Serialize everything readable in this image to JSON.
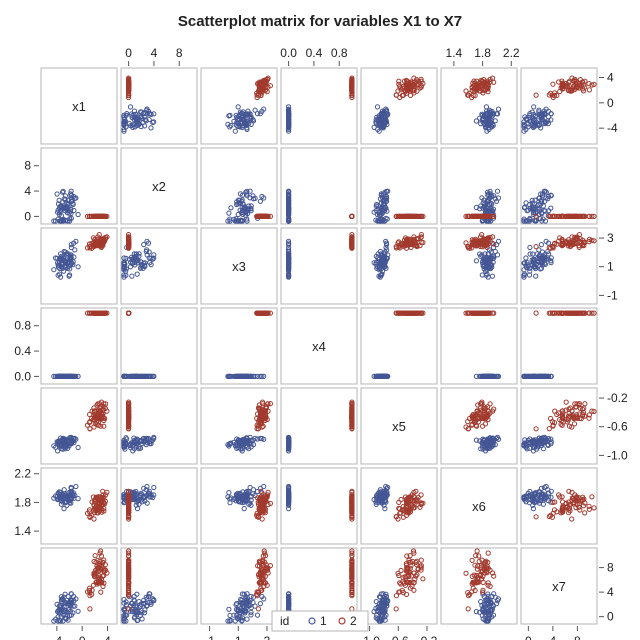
{
  "chart_data": {
    "type": "scatter-matrix",
    "title": "Scatterplot matrix for variables X1 to X7",
    "variables": [
      {
        "name": "x1",
        "range": [
          -6.5,
          5.5
        ],
        "ticks": [
          -4,
          0,
          4
        ]
      },
      {
        "name": "x2",
        "range": [
          -1.2,
          10.8
        ],
        "ticks": [
          0,
          4,
          8
        ]
      },
      {
        "name": "x3",
        "range": [
          -1.6,
          3.7
        ],
        "ticks": [
          -1,
          1,
          3
        ]
      },
      {
        "name": "x4",
        "range": [
          -0.12,
          1.08
        ],
        "ticks": [
          0.0,
          0.4,
          0.8
        ]
      },
      {
        "name": "x5",
        "range": [
          -1.12,
          -0.06
        ],
        "ticks": [
          -1.0,
          -0.6,
          -0.2
        ]
      },
      {
        "name": "x6",
        "range": [
          1.22,
          2.28
        ],
        "ticks": [
          1.4,
          1.8,
          2.2
        ]
      },
      {
        "name": "x7",
        "range": [
          -1.2,
          11.2
        ],
        "ticks": [
          0,
          4,
          8
        ]
      }
    ],
    "tick_labels_top": [
      "0",
      "4",
      "8",
      "",
      "0.0",
      "0.4",
      "0.8",
      "",
      "1.4",
      "1.8",
      "2.2"
    ],
    "tick_labels_bottom": [
      "-4",
      "0",
      "4",
      "",
      "-1",
      "1",
      "3",
      "",
      "-1.0",
      "-0.6",
      "-0.2",
      "",
      "0",
      "4",
      "8"
    ],
    "tick_labels_left": [
      "",
      "0.8",
      "0.4",
      "0.0",
      "",
      "2.2",
      "1.8",
      "1.4"
    ],
    "tick_labels_right": [
      "4",
      "0",
      "-4",
      "",
      "3",
      "1",
      "-1",
      "",
      "-0.2",
      "-0.6",
      "-1.0",
      "",
      "8",
      "4",
      "0"
    ],
    "tick_labels_left_x2": [
      "8",
      "4",
      "0"
    ],
    "groups": [
      {
        "id": "1",
        "color": "#445694",
        "centroid": {
          "x1": -2.5,
          "x2": 1.5,
          "x3": 1.4,
          "x4": 0.0,
          "x5": -0.82,
          "x6": 1.88,
          "x7": 1.5
        },
        "spread": {
          "x1": 1.5,
          "x2": 2.2,
          "x3": 0.7,
          "x4": 0.0,
          "x5": 0.06,
          "x6": 0.08,
          "x7": 1.8
        }
      },
      {
        "id": "2",
        "color": "#A23A2E",
        "centroid": {
          "x1": 2.8,
          "x2": 0.0,
          "x3": 2.7,
          "x4": 1.0,
          "x5": -0.45,
          "x6": 1.75,
          "x7": 7.0
        },
        "spread": {
          "x1": 1.0,
          "x2": 0.0,
          "x3": 0.3,
          "x4": 0.0,
          "x5": 0.12,
          "x6": 0.12,
          "x7": 2.2
        }
      }
    ],
    "legend": {
      "title": "id",
      "entries": [
        "1",
        "2"
      ],
      "placement": "bottom"
    }
  }
}
